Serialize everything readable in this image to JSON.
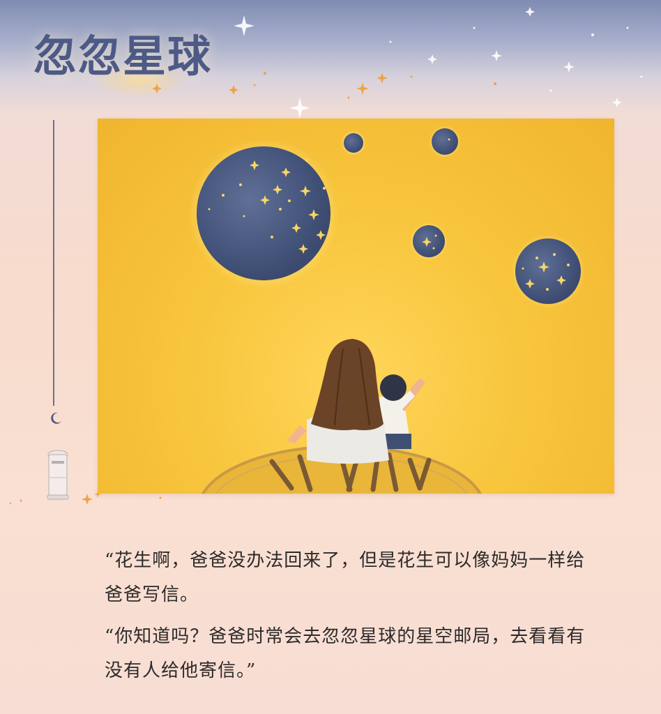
{
  "page": {
    "title": "忽忽星球"
  },
  "colors": {
    "title": "#4d5a86",
    "illustration_background": "#f8c63d",
    "planet": "#4b5e86",
    "text": "#2d2a2a"
  },
  "story": {
    "paragraphs": [
      "“花生啊，爸爸没办法回来了，但是花生可以像妈妈一样给爸爸写信。",
      "“你知道吗？爸爸时常会去忽忽星球的星空邮局，去看看有没有人给他寄信。”"
    ]
  },
  "icons": {
    "moon": "crescent-moon-icon",
    "mailbox": "mailbox-icon",
    "stars": "sparkle-star-icon"
  }
}
